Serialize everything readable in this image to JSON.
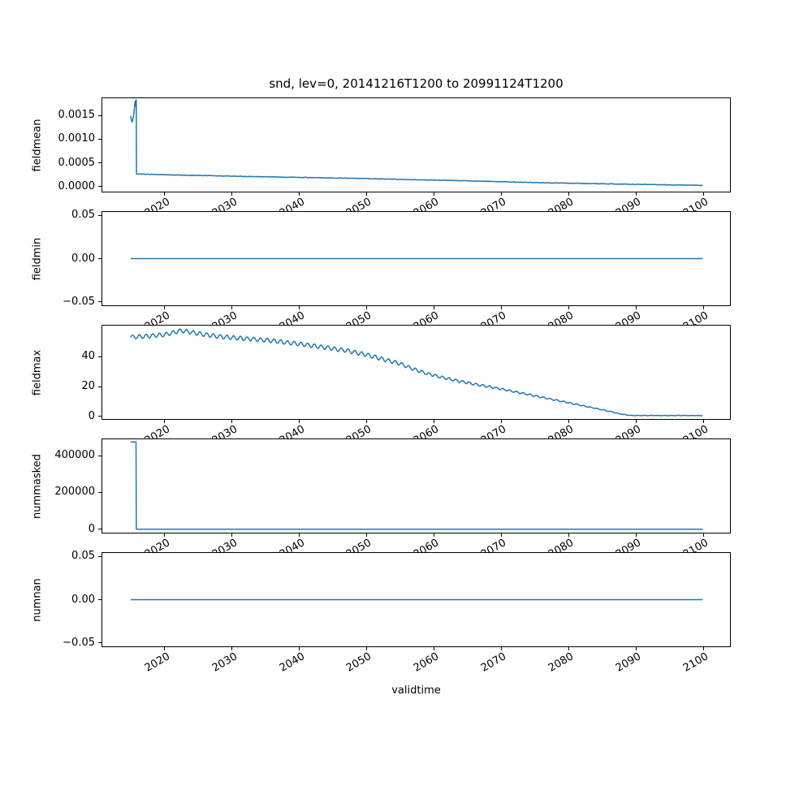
{
  "title": "snd, lev=0, 20141216T1200 to 20991124T1200",
  "line_color": "#1f77b4",
  "x_axis": {
    "label": "validtime",
    "ticks": [
      "2020",
      "2030",
      "2040",
      "2050",
      "2060",
      "2070",
      "2080",
      "2090",
      "2100"
    ],
    "tick_years": [
      2020,
      2030,
      2040,
      2050,
      2060,
      2070,
      2080,
      2090,
      2100
    ],
    "lim": [
      2010.63,
      2104.07
    ]
  },
  "chart_data": [
    {
      "type": "line",
      "ylabel": "fieldmean",
      "ytick_labels": [
        "0.0000",
        "0.0005",
        "0.0010",
        "0.0015"
      ],
      "yticks": [
        0.0,
        0.0005,
        0.001,
        0.0015
      ],
      "ylim": [
        -0.00012,
        0.00188
      ],
      "sampled": true,
      "noise": 6e-06,
      "points": [
        [
          2014.96,
          0.00149
        ],
        [
          2015.05,
          0.00141
        ],
        [
          2015.2,
          0.00136
        ],
        [
          2015.45,
          0.00155
        ],
        [
          2015.6,
          0.00178
        ],
        [
          2015.68,
          0.00181
        ],
        [
          2015.74,
          0.00169
        ],
        [
          2015.79,
          0.00183
        ],
        [
          2015.83,
          0.00027
        ],
        [
          2018,
          0.00026
        ],
        [
          2022,
          0.000245
        ],
        [
          2026,
          0.000235
        ],
        [
          2030,
          0.000222
        ],
        [
          2034,
          0.000212
        ],
        [
          2038,
          0.000202
        ],
        [
          2042,
          0.000192
        ],
        [
          2046,
          0.000183
        ],
        [
          2049,
          0.000176
        ],
        [
          2052,
          0.000165
        ],
        [
          2056,
          0.000152
        ],
        [
          2060,
          0.00014
        ],
        [
          2064,
          0.000128
        ],
        [
          2068,
          0.000113
        ],
        [
          2072,
          9.8e-05
        ],
        [
          2076,
          8.6e-05
        ],
        [
          2080,
          7.5e-05
        ],
        [
          2084,
          6.4e-05
        ],
        [
          2088,
          5.5e-05
        ],
        [
          2092,
          4.6e-05
        ],
        [
          2096,
          3.7e-05
        ],
        [
          2099.9,
          3e-05
        ]
      ]
    },
    {
      "type": "line",
      "ylabel": "fieldmin",
      "ytick_labels": [
        "−0.05",
        "0.00",
        "0.05"
      ],
      "yticks": [
        -0.05,
        0.0,
        0.05
      ],
      "ylim": [
        -0.055,
        0.055
      ],
      "sampled": false,
      "points": [
        [
          2014.96,
          0
        ],
        [
          2099.9,
          0
        ]
      ]
    },
    {
      "type": "line",
      "ylabel": "fieldmax",
      "ytick_labels": [
        "0",
        "20",
        "40"
      ],
      "yticks": [
        0,
        20,
        40
      ],
      "ylim": [
        -2.2,
        61.2
      ],
      "sampled": true,
      "noise": 0.1,
      "wiggle": {
        "amp": 1.35,
        "period": 1.0,
        "taper_base": 0.1,
        "taper_slope": 0.03
      },
      "points": [
        [
          2014.96,
          53.0
        ],
        [
          2017,
          53.5
        ],
        [
          2020,
          54.6
        ],
        [
          2022.5,
          57.3
        ],
        [
          2024,
          56.2
        ],
        [
          2026,
          54.6
        ],
        [
          2028,
          53.4
        ],
        [
          2031,
          52.3
        ],
        [
          2035,
          51.0
        ],
        [
          2038,
          49.5
        ],
        [
          2041,
          47.8
        ],
        [
          2044,
          46.0
        ],
        [
          2047,
          44.0
        ],
        [
          2050,
          41.2
        ],
        [
          2052,
          38.8
        ],
        [
          2055,
          35.2
        ],
        [
          2057,
          31.6
        ],
        [
          2059,
          28.6
        ],
        [
          2061,
          26.3
        ],
        [
          2063,
          24.3
        ],
        [
          2066,
          21.6
        ],
        [
          2069,
          19.2
        ],
        [
          2072,
          16.5
        ],
        [
          2075,
          13.8
        ],
        [
          2078,
          11.0
        ],
        [
          2081,
          8.2
        ],
        [
          2084,
          5.4
        ],
        [
          2086,
          3.5
        ],
        [
          2088,
          1.4
        ],
        [
          2089,
          0.8
        ],
        [
          2090,
          0.65
        ],
        [
          2099.9,
          0.65
        ]
      ]
    },
    {
      "type": "line",
      "ylabel": "nummasked",
      "ytick_labels": [
        "0",
        "200000",
        "400000"
      ],
      "yticks": [
        0,
        200000,
        400000
      ],
      "ylim": [
        -23500,
        493500
      ],
      "sampled": false,
      "points": [
        [
          2014.96,
          475000
        ],
        [
          2015.76,
          475000
        ],
        [
          2015.8,
          0
        ],
        [
          2099.9,
          0
        ]
      ]
    },
    {
      "type": "line",
      "ylabel": "numnan",
      "ytick_labels": [
        "−0.05",
        "0.00",
        "0.05"
      ],
      "yticks": [
        -0.05,
        0.0,
        0.05
      ],
      "ylim": [
        -0.055,
        0.055
      ],
      "sampled": false,
      "points": [
        [
          2014.96,
          0
        ],
        [
          2099.9,
          0
        ]
      ]
    }
  ]
}
